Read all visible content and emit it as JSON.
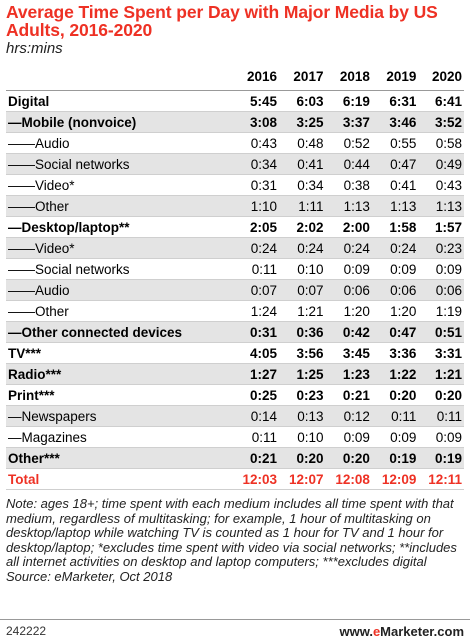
{
  "chart_data": {
    "type": "table",
    "title": "Average Time Spent per Day with Major Media by US Adults, 2016-2020",
    "subtitle": "hrs:mins",
    "columns": [
      "2016",
      "2017",
      "2018",
      "2019",
      "2020"
    ],
    "rows": [
      {
        "label": "Digital",
        "style": "bold",
        "values": [
          "5:45",
          "6:03",
          "6:19",
          "6:31",
          "6:41"
        ]
      },
      {
        "label": "—Mobile (nonvoice)",
        "style": "bold",
        "values": [
          "3:08",
          "3:25",
          "3:37",
          "3:46",
          "3:52"
        ]
      },
      {
        "label": "——Audio",
        "style": "normal",
        "values": [
          "0:43",
          "0:48",
          "0:52",
          "0:55",
          "0:58"
        ]
      },
      {
        "label": "——Social networks",
        "style": "normal",
        "values": [
          "0:34",
          "0:41",
          "0:44",
          "0:47",
          "0:49"
        ]
      },
      {
        "label": "——Video*",
        "style": "normal",
        "values": [
          "0:31",
          "0:34",
          "0:38",
          "0:41",
          "0:43"
        ]
      },
      {
        "label": "——Other",
        "style": "normal",
        "values": [
          "1:10",
          "1:11",
          "1:13",
          "1:13",
          "1:13"
        ]
      },
      {
        "label": "—Desktop/laptop**",
        "style": "bold",
        "values": [
          "2:05",
          "2:02",
          "2:00",
          "1:58",
          "1:57"
        ]
      },
      {
        "label": "——Video*",
        "style": "normal",
        "values": [
          "0:24",
          "0:24",
          "0:24",
          "0:24",
          "0:23"
        ]
      },
      {
        "label": "——Social networks",
        "style": "normal",
        "values": [
          "0:11",
          "0:10",
          "0:09",
          "0:09",
          "0:09"
        ]
      },
      {
        "label": "——Audio",
        "style": "normal",
        "values": [
          "0:07",
          "0:07",
          "0:06",
          "0:06",
          "0:06"
        ]
      },
      {
        "label": "——Other",
        "style": "normal",
        "values": [
          "1:24",
          "1:21",
          "1:20",
          "1:20",
          "1:19"
        ]
      },
      {
        "label": "—Other connected devices",
        "style": "bold",
        "values": [
          "0:31",
          "0:36",
          "0:42",
          "0:47",
          "0:51"
        ]
      },
      {
        "label": "TV***",
        "style": "bold",
        "values": [
          "4:05",
          "3:56",
          "3:45",
          "3:36",
          "3:31"
        ]
      },
      {
        "label": "Radio***",
        "style": "bold",
        "values": [
          "1:27",
          "1:25",
          "1:23",
          "1:22",
          "1:21"
        ]
      },
      {
        "label": "Print***",
        "style": "bold",
        "values": [
          "0:25",
          "0:23",
          "0:21",
          "0:20",
          "0:20"
        ]
      },
      {
        "label": "—Newspapers",
        "style": "normal",
        "values": [
          "0:14",
          "0:13",
          "0:12",
          "0:11",
          "0:11"
        ]
      },
      {
        "label": "—Magazines",
        "style": "normal",
        "values": [
          "0:11",
          "0:10",
          "0:09",
          "0:09",
          "0:09"
        ]
      },
      {
        "label": "Other***",
        "style": "bold",
        "values": [
          "0:21",
          "0:20",
          "0:20",
          "0:19",
          "0:19"
        ]
      },
      {
        "label": "Total",
        "style": "total",
        "values": [
          "12:03",
          "12:07",
          "12:08",
          "12:09",
          "12:11"
        ]
      }
    ]
  },
  "note": "Note: ages 18+; time spent with each medium includes all time spent with that medium, regardless of multitasking; for example, 1 hour of multitasking on desktop/laptop while watching TV is counted as 1 hour for TV and 1 hour for desktop/laptop; *excludes time spent with video via social networks; **includes all internet activities on desktop and laptop computers; ***excludes digital",
  "source": "Source: eMarketer, Oct 2018",
  "footer": {
    "chart_id": "242222",
    "brand_prefix": "www.",
    "brand_e": "e",
    "brand_name": "Marketer",
    "brand_suffix": ".com"
  },
  "colors": {
    "accent": "#ee3124",
    "shade": "#e4e4e4"
  }
}
